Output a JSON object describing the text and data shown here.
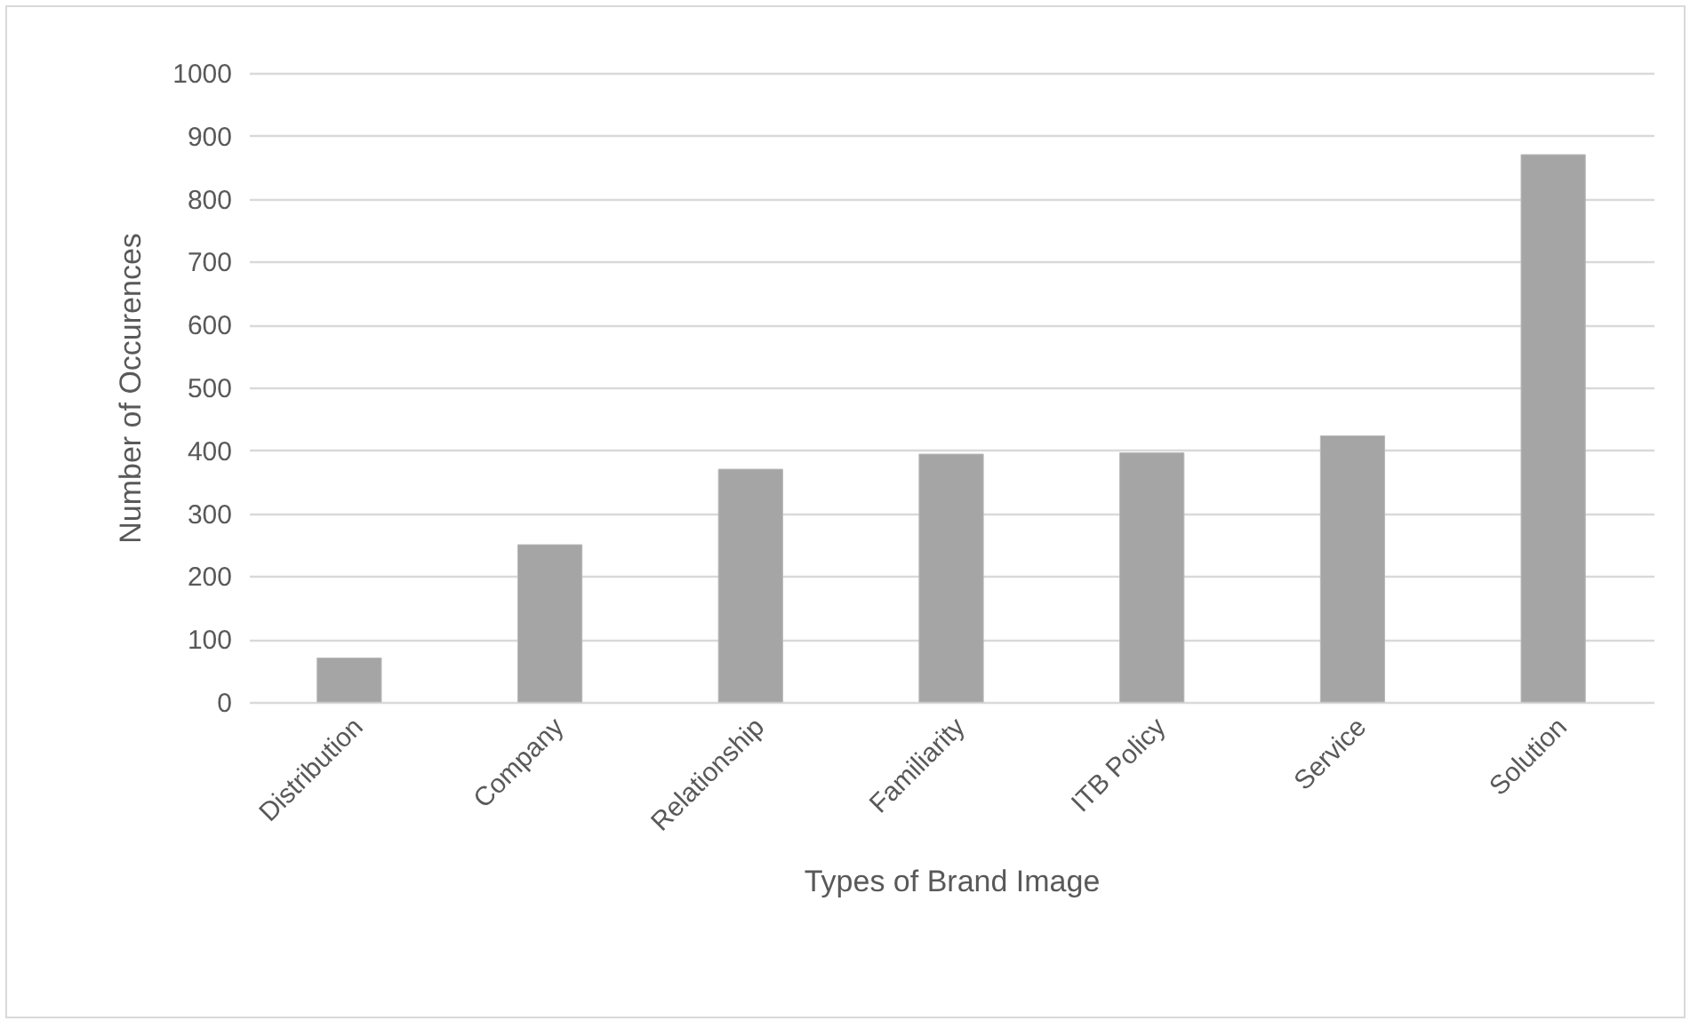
{
  "chart_data": {
    "type": "bar",
    "xlabel": "Types of Brand Image",
    "ylabel": "Number of Occurences",
    "categories": [
      "Distribution",
      "Company",
      "Relationship",
      "Familiarity",
      "ITB Policy",
      "Service",
      "Solution"
    ],
    "values": [
      70,
      250,
      370,
      394,
      396,
      423,
      870
    ],
    "color": "#a5a5a5",
    "ylim": [
      0,
      1000
    ],
    "yticks": [
      0,
      100,
      200,
      300,
      400,
      500,
      600,
      700,
      800,
      900,
      1000
    ],
    "grid": "y"
  }
}
